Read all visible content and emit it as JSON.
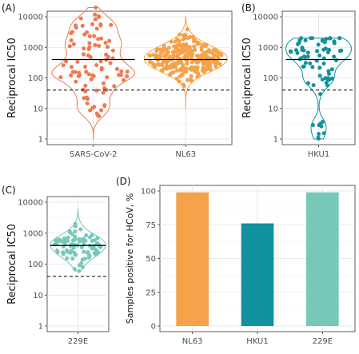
{
  "chart_data": [
    {
      "type": "scatter",
      "panel_label": "(A)",
      "ylabel": "Reciprocal IC50",
      "y_scale": "log10",
      "ylim": [
        1,
        10000
      ],
      "y_ticks": [
        1,
        10,
        100,
        1000,
        10000
      ],
      "y_tick_labels": [
        "1",
        "10",
        "100",
        "1000",
        "10000"
      ],
      "categories": [
        "SARS-CoV-2",
        "NL63"
      ],
      "series": [
        {
          "category": "SARS-CoV-2",
          "color": "#f07850",
          "violin_range": [
            1,
            20000
          ],
          "median": 400,
          "n_points": 95,
          "seed": 11,
          "dist": "wide",
          "point_range": [
            1,
            20000
          ]
        },
        {
          "category": "NL63",
          "color": "#f5a24a",
          "violin_range": [
            10,
            10000
          ],
          "median": 400,
          "n_points": 260,
          "seed": 23,
          "dist": "central",
          "point_range": [
            10,
            8000
          ]
        }
      ],
      "reference_line": 40,
      "grid": true
    },
    {
      "type": "scatter",
      "panel_label": "(B)",
      "ylabel": "Reciprocal IC50",
      "y_scale": "log10",
      "ylim": [
        1,
        10000
      ],
      "y_ticks": [
        1,
        10,
        100,
        1000,
        10000
      ],
      "y_tick_labels": [
        "1",
        "10",
        "100",
        "1000",
        "10000"
      ],
      "categories": [
        "HKU1"
      ],
      "series": [
        {
          "category": "HKU1",
          "color": "#12919e",
          "violin_range": [
            1,
            2000
          ],
          "median": 400,
          "n_points": 75,
          "seed": 37,
          "dist": "hku1",
          "point_range": [
            1,
            2000
          ]
        }
      ],
      "reference_line": 40,
      "grid": true
    },
    {
      "type": "scatter",
      "panel_label": "(C)",
      "ylabel": "Reciprocal IC50",
      "y_scale": "log10",
      "ylim": [
        1,
        10000
      ],
      "y_ticks": [
        1,
        10,
        100,
        1000,
        10000
      ],
      "y_tick_labels": [
        "1",
        "10",
        "100",
        "1000",
        "10000"
      ],
      "categories": [
        "229E"
      ],
      "series": [
        {
          "category": "229E",
          "color": "#76c9b8",
          "violin_range": [
            60,
            6000
          ],
          "median": 400,
          "n_points": 90,
          "seed": 53,
          "dist": "central",
          "point_range": [
            60,
            5000
          ]
        }
      ],
      "reference_line": 40,
      "grid": true
    },
    {
      "type": "bar",
      "panel_label": "(D)",
      "ylabel": "Samples positive for HCoV, %",
      "ylim": [
        0,
        100
      ],
      "y_ticks": [
        0,
        25,
        50,
        75,
        100
      ],
      "y_tick_labels": [
        "0",
        "25",
        "50",
        "75",
        "100"
      ],
      "categories": [
        "NL63",
        "HKU1",
        "229E"
      ],
      "values": [
        99,
        76,
        99
      ],
      "colors": [
        "#f5a24a",
        "#12919e",
        "#76c9b8"
      ],
      "grid": true
    }
  ]
}
